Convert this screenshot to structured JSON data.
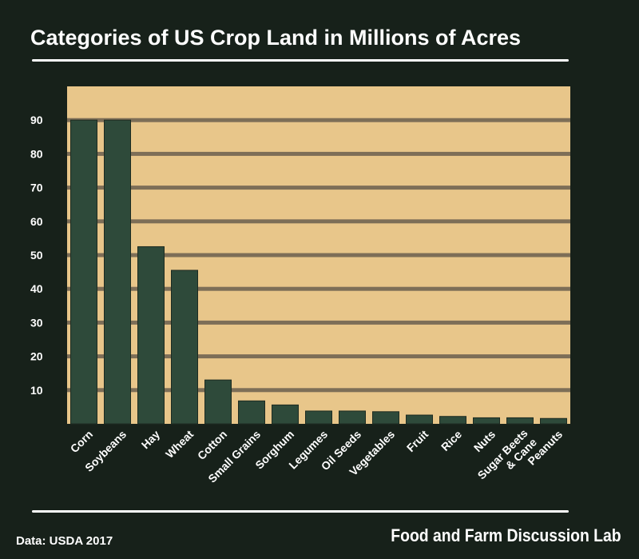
{
  "chart_data": {
    "type": "bar",
    "title": "Categories of US Crop Land in Millions of Acres",
    "xlabel": "",
    "ylabel": "",
    "categories": [
      "Corn",
      "Soybeans",
      "Hay",
      "Wheat",
      "Cotton",
      "Small Grains",
      "Sorghum",
      "Legumes",
      "Oil Seeds",
      "Vegetables",
      "Fruit",
      "Rice",
      "Nuts",
      "Sugar Beets & Cane",
      "Peanuts"
    ],
    "category_lines": [
      [
        "Corn"
      ],
      [
        "Soybeans"
      ],
      [
        "Hay"
      ],
      [
        "Wheat"
      ],
      [
        "Cotton"
      ],
      [
        "Small Grains"
      ],
      [
        "Sorghum"
      ],
      [
        "Legumes"
      ],
      [
        "Oil Seeds"
      ],
      [
        "Vegetables"
      ],
      [
        "Fruit"
      ],
      [
        "Rice"
      ],
      [
        "Nuts"
      ],
      [
        "Sugar Beets",
        "& Cane"
      ],
      [
        "Peanuts"
      ]
    ],
    "values": [
      90,
      90,
      52.5,
      45.5,
      13,
      6.8,
      5.6,
      3.8,
      3.8,
      3.6,
      2.6,
      2.2,
      1.8,
      1.8,
      1.6
    ],
    "ylim": [
      0,
      100
    ],
    "yticks": [
      10,
      20,
      30,
      40,
      50,
      60,
      70,
      80,
      90
    ],
    "grid": true,
    "colors": {
      "background": "#17211a",
      "plot": "#e8c68a",
      "grid": "#7d6e57",
      "bar": "#2e4a3a",
      "text": "#ffffff"
    }
  },
  "footer": {
    "source": "Data: USDA 2017",
    "brand": "Food and Farm Discussion Lab"
  }
}
